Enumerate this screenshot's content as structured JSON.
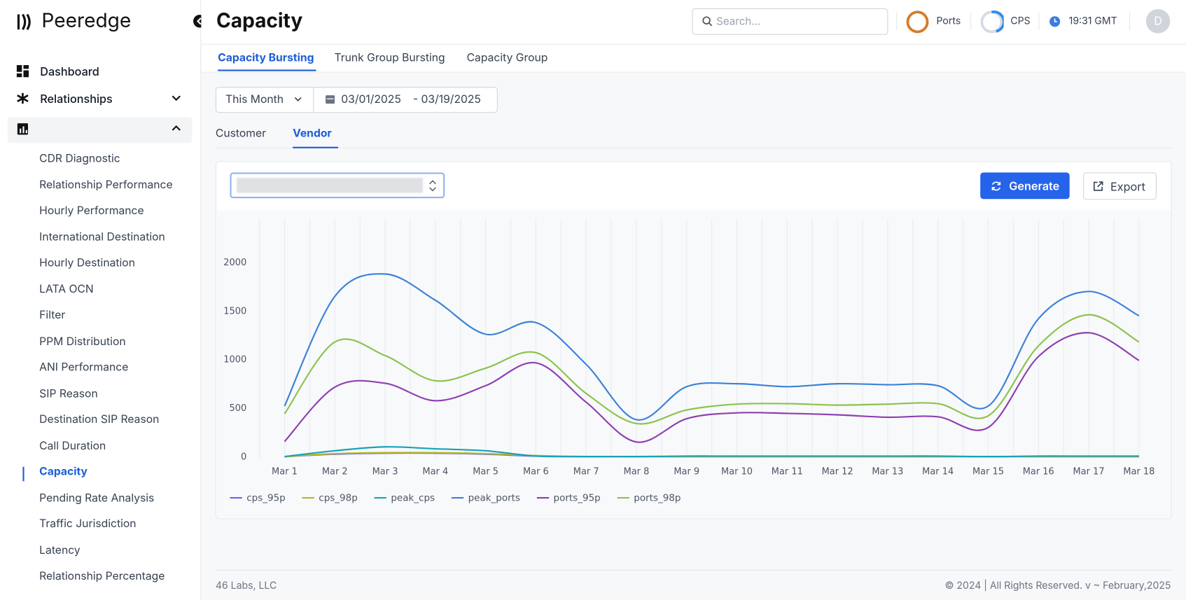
{
  "brand": "Peeredge",
  "nav": {
    "items": [
      "Dashboard",
      "Relationships",
      "Reports"
    ],
    "reports": [
      "CDR Diagnostic",
      "Relationship Performance",
      "Hourly Performance",
      "International Destination",
      "Hourly Destination",
      "LATA OCN",
      "Filter",
      "PPM Distribution",
      "ANI Performance",
      "SIP Reason",
      "Destination SIP Reason",
      "Call Duration",
      "Capacity",
      "Pending Rate Analysis",
      "Traffic Jurisdiction",
      "Latency",
      "Relationship Percentage"
    ]
  },
  "header": {
    "title": "Capacity",
    "search_placeholder": "Search...",
    "ports": "Ports",
    "cps": "CPS",
    "time": "19:31 GMT",
    "avatar": "D"
  },
  "tabs": [
    "Capacity Bursting",
    "Trunk Group Bursting",
    "Capacity Group"
  ],
  "filters": {
    "period": "This Month",
    "date_from": "03/01/2025",
    "date_to": "- 03/19/2025"
  },
  "subtabs": [
    "Customer",
    "Vendor"
  ],
  "buttons": {
    "generate": "Generate",
    "export": "Export"
  },
  "chart_data": {
    "type": "line",
    "categories": [
      "Mar 1",
      "Mar 2",
      "Mar 3",
      "Mar 4",
      "Mar 5",
      "Mar 6",
      "Mar 7",
      "Mar 8",
      "Mar 9",
      "Mar 10",
      "Mar 11",
      "Mar 12",
      "Mar 13",
      "Mar 14",
      "Mar 15",
      "Mar 16",
      "Mar 17",
      "Mar 18"
    ],
    "series": [
      {
        "name": "cps_95p",
        "color": "#6366f1",
        "values": [
          0,
          25,
          35,
          35,
          25,
          5,
          0,
          0,
          0,
          0,
          0,
          0,
          0,
          0,
          0,
          0,
          0,
          0
        ]
      },
      {
        "name": "cps_98p",
        "color": "#b8b626",
        "values": [
          0,
          30,
          40,
          40,
          30,
          10,
          0,
          0,
          0,
          0,
          0,
          0,
          0,
          0,
          0,
          0,
          0,
          0
        ]
      },
      {
        "name": "peak_cps",
        "color": "#17a2b8",
        "values": [
          0,
          60,
          100,
          80,
          60,
          5,
          0,
          0,
          5,
          5,
          5,
          5,
          5,
          5,
          0,
          5,
          5,
          5
        ]
      },
      {
        "name": "peak_ports",
        "color": "#3b82d6",
        "values": [
          520,
          1650,
          1880,
          1610,
          1260,
          1380,
          950,
          380,
          720,
          750,
          720,
          750,
          740,
          730,
          520,
          1420,
          1700,
          1450
        ]
      },
      {
        "name": "ports_95p",
        "color": "#8e3fb0",
        "values": [
          155,
          715,
          755,
          575,
          730,
          965,
          560,
          150,
          390,
          450,
          445,
          430,
          405,
          410,
          300,
          1030,
          1275,
          990
        ]
      },
      {
        "name": "ports_98p",
        "color": "#8bc34a",
        "values": [
          440,
          1180,
          1040,
          780,
          910,
          1070,
          650,
          340,
          480,
          540,
          545,
          530,
          540,
          545,
          420,
          1140,
          1460,
          1180
        ]
      }
    ],
    "ylim": [
      -20,
      2450
    ],
    "yticks": [
      0,
      500,
      1000,
      1500,
      2000
    ],
    "grid": "x",
    "legend": "bottom"
  },
  "footer": {
    "left": "46 Labs, LLC",
    "right": "© 2024 | All Rights Reserved. v ~ February,2025"
  }
}
